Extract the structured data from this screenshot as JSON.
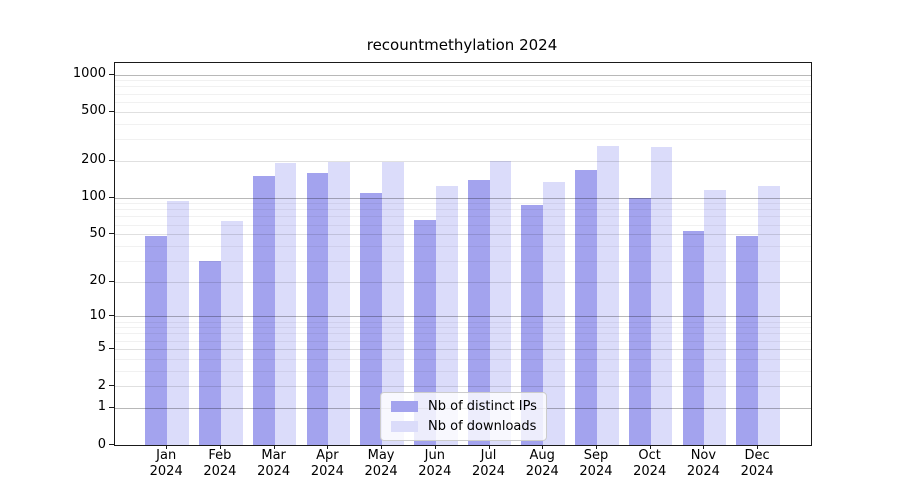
{
  "title": "recountmethylation 2024",
  "chart_data": {
    "type": "bar",
    "title": "recountmethylation 2024",
    "xlabel": "",
    "ylabel": "",
    "yscale": "log1p",
    "ylim": [
      0,
      1240
    ],
    "yticks": [
      0,
      1,
      2,
      5,
      10,
      20,
      50,
      100,
      200,
      500,
      1000
    ],
    "grid": true,
    "legend_position": "lower center",
    "categories": [
      "Jan 2024",
      "Feb 2024",
      "Mar 2024",
      "Apr 2024",
      "May 2024",
      "Jun 2024",
      "Jul 2024",
      "Aug 2024",
      "Sep 2024",
      "Oct 2024",
      "Nov 2024",
      "Dec 2024"
    ],
    "series": [
      {
        "name": "Nb of distinct IPs",
        "color": "#a3a3ee",
        "values": [
          48,
          30,
          149,
          159,
          108,
          65,
          139,
          87,
          168,
          100,
          53,
          48
        ]
      },
      {
        "name": "Nb of downloads",
        "color": "#dbdcfa",
        "values": [
          93,
          64,
          192,
          194,
          196,
          125,
          199,
          134,
          263,
          258,
          116,
          124
        ]
      }
    ]
  }
}
